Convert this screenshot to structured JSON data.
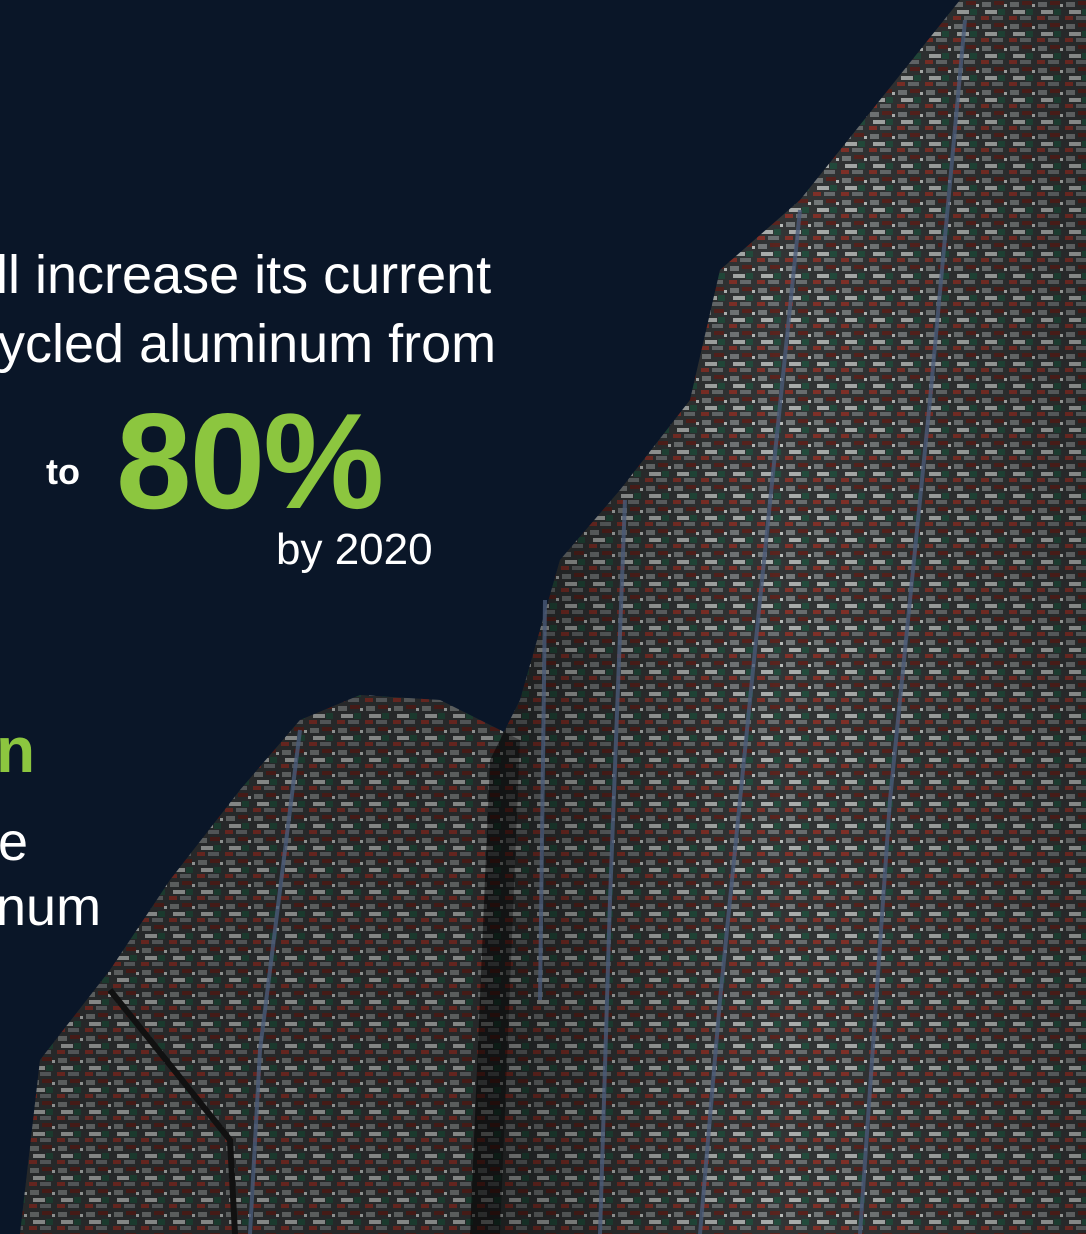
{
  "headline": {
    "line1": "ll increase its current",
    "line2": "ycled aluminum from",
    "from_value_fragment": ")",
    "to_word": "to",
    "target_percent": "80%",
    "by_year": "by 2020"
  },
  "secondary": {
    "green_fragment": "n",
    "line_fragment_1": "e",
    "line_fragment_2": "num"
  },
  "image": {
    "subject": "stacked-bales-of-crushed-aluminum-cans",
    "sky_color": "#0a1628"
  },
  "colors": {
    "accent_green": "#8cc63f",
    "background": "#0a1628",
    "text": "#ffffff"
  }
}
